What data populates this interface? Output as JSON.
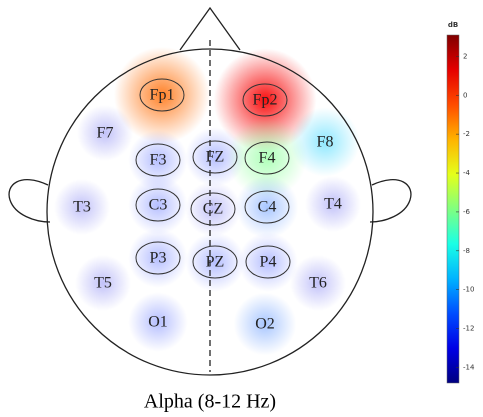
{
  "chart_data": {
    "type": "topomap",
    "title": "Alpha (8-12 Hz)",
    "colorbar_label": "dB",
    "colormap": "jet",
    "categories": [
      "Fp1",
      "Fp2",
      "F7",
      "F3",
      "FZ",
      "F4",
      "F8",
      "T3",
      "C3",
      "CZ",
      "C4",
      "T4",
      "T5",
      "P3",
      "PZ",
      "P4",
      "T6",
      "O1",
      "O2"
    ],
    "values": [
      -1,
      1,
      -13,
      -12,
      -12,
      -6,
      -9,
      -13,
      -12,
      -13,
      -11,
      -13,
      -13,
      -12,
      -12,
      -12,
      -13,
      -12,
      -11
    ],
    "ylim": [
      -14.8,
      3.1
    ],
    "yticks": [
      2,
      0,
      -2,
      -4,
      -6,
      -8,
      -10,
      -12,
      -14
    ]
  }
}
